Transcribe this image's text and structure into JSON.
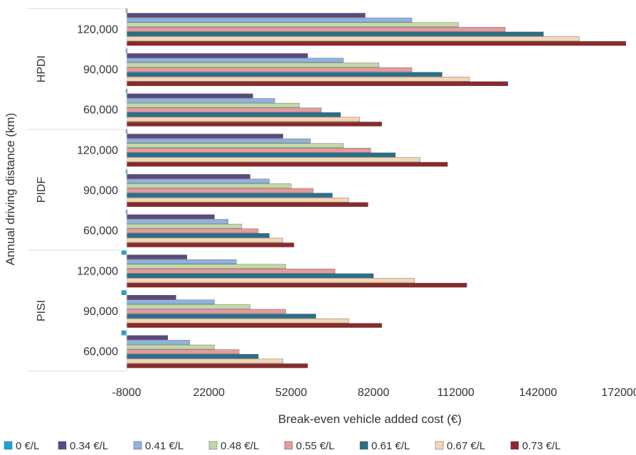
{
  "chart_data": {
    "type": "bar",
    "orientation": "horizontal",
    "xlabel": "Break-even vehicle added cost (€)",
    "ylabel": "Annual driving distance (km)",
    "xlim": [
      -8000,
      172000
    ],
    "xticks": [
      -8000,
      22000,
      52000,
      82000,
      112000,
      142000,
      172000
    ],
    "xtick_labels": [
      "-8000",
      "22000",
      "52000",
      "82000",
      "112000",
      "142000",
      "172000"
    ],
    "grid": false,
    "legend_position": "bottom",
    "groups": [
      {
        "name": "HPDI",
        "categories": [
          "120,000",
          "90,000",
          "60,000"
        ]
      },
      {
        "name": "PIDF",
        "categories": [
          "120,000",
          "90,000",
          "60,000"
        ]
      },
      {
        "name": "PISI",
        "categories": [
          "120,000",
          "90,000",
          "60,000"
        ]
      }
    ],
    "category_order": [
      "HPDI 120,000",
      "HPDI 90,000",
      "HPDI 60,000",
      "PIDF 120,000",
      "PIDF 90,000",
      "PIDF 60,000",
      "PISI 120,000",
      "PISI 90,000",
      "PISI 60,000"
    ],
    "series": [
      {
        "name": "0 €/L",
        "color": "#1aa3e0",
        "values": [
          0,
          0,
          0,
          0,
          0,
          0,
          -2000,
          -2000,
          -1000
        ]
      },
      {
        "name": "0.34 €/L",
        "color": "#5b4a7e",
        "values": [
          79000,
          58000,
          38000,
          49000,
          37000,
          24000,
          14000,
          10000,
          7000
        ]
      },
      {
        "name": "0.41 €/L",
        "color": "#8fb2df",
        "values": [
          96000,
          71000,
          46000,
          59000,
          44000,
          29000,
          32000,
          24000,
          15000
        ]
      },
      {
        "name": "0.48 €/L",
        "color": "#c2d9a8",
        "values": [
          113000,
          84000,
          55000,
          71000,
          52000,
          34000,
          50000,
          37000,
          24000
        ]
      },
      {
        "name": "0.55 €/L",
        "color": "#e49a9e",
        "values": [
          130000,
          96000,
          63000,
          81000,
          60000,
          40000,
          68000,
          50000,
          33000
        ]
      },
      {
        "name": "0.61 €/L",
        "color": "#2a6f8a",
        "values": [
          144000,
          107000,
          70000,
          90000,
          67000,
          44000,
          82000,
          61000,
          40000
        ]
      },
      {
        "name": "0.67 €/L",
        "color": "#f3d6b5",
        "values": [
          157000,
          117000,
          77000,
          99000,
          73000,
          49000,
          97000,
          73000,
          49000
        ]
      },
      {
        "name": "0.73 €/L",
        "color": "#8b2a2a",
        "values": [
          174000,
          131000,
          85000,
          109000,
          80000,
          53000,
          116000,
          85000,
          58000
        ]
      }
    ]
  }
}
